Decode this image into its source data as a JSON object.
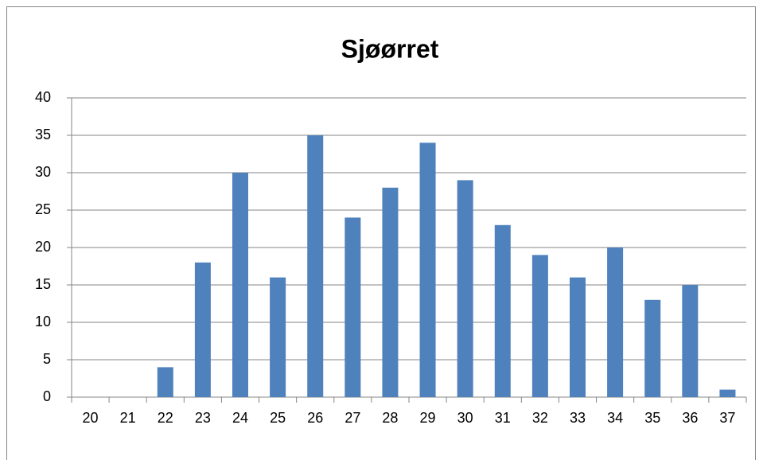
{
  "chart_data": {
    "type": "bar",
    "title": "Sjøørret",
    "categories": [
      "20",
      "21",
      "22",
      "23",
      "24",
      "25",
      "26",
      "27",
      "28",
      "29",
      "30",
      "31",
      "32",
      "33",
      "34",
      "35",
      "36",
      "37"
    ],
    "values": [
      0,
      0,
      4,
      18,
      30,
      16,
      35,
      24,
      28,
      34,
      29,
      23,
      19,
      16,
      20,
      13,
      15,
      1
    ],
    "color": "#4f81bd",
    "ylim": [
      0,
      40
    ],
    "yticks": [
      0,
      5,
      10,
      15,
      20,
      25,
      30,
      35,
      40
    ],
    "grid": true
  }
}
